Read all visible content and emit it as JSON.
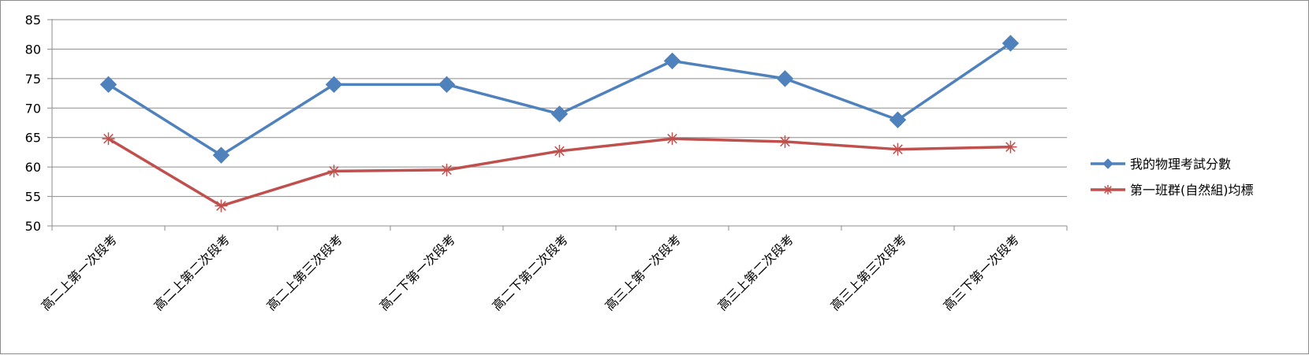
{
  "chart_data": {
    "type": "line",
    "categories": [
      "高二上第一次段考",
      "高二上第二次段考",
      "高二上第三次段考",
      "高二下第一次段考",
      "高二下第二次段考",
      "高三上第一次段考",
      "高三上第二次段考",
      "高三上第三次段考",
      "高三下第一次段考"
    ],
    "series": [
      {
        "name": "我的物理考試分數",
        "values": [
          74,
          62,
          74,
          74,
          69,
          78,
          75,
          68,
          81
        ],
        "color": "#4F81BD",
        "marker": "diamond"
      },
      {
        "name": "第一班群(自然組)均標",
        "values": [
          64.8,
          53.4,
          59.3,
          59.5,
          62.7,
          64.8,
          64.3,
          63.0,
          63.4
        ],
        "color": "#C0504D",
        "marker": "asterisk"
      }
    ],
    "ylim": [
      50,
      85
    ],
    "yticks": [
      50,
      55,
      60,
      65,
      70,
      75,
      80,
      85
    ],
    "ytick_labels": [
      "50",
      "55",
      "60",
      "65",
      "70",
      "75",
      "80",
      "85"
    ],
    "title": "",
    "xlabel": "",
    "ylabel": "",
    "grid": true,
    "legend_position": "right"
  }
}
